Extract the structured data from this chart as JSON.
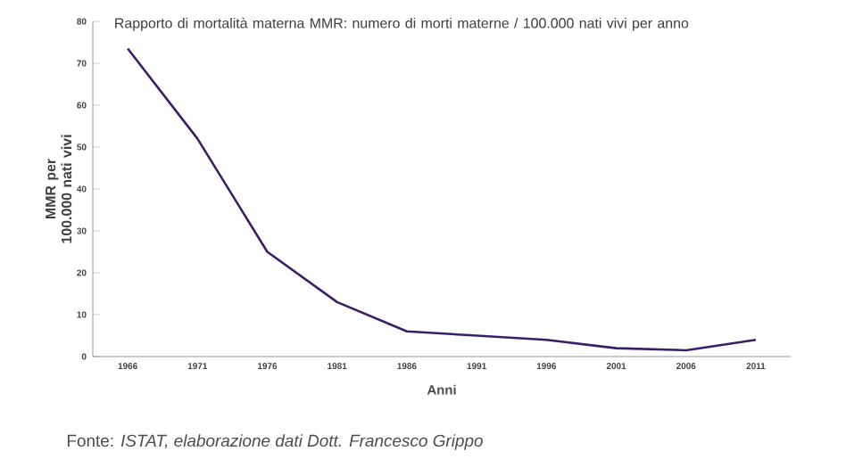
{
  "chart_data": {
    "type": "line",
    "title": "Rapporto di mortalità materna MMR: numero di morti materne / 100.000 nati vivi  per anno",
    "xlabel": "Anni",
    "ylabel": "MMR per 100.000 nati vivi",
    "categories": [
      "1966",
      "1971",
      "1976",
      "1981",
      "1986",
      "1991",
      "1996",
      "2001",
      "2006",
      "2011"
    ],
    "series": [
      {
        "color": "#3b1f66",
        "values": [
          73.5,
          52,
          25,
          13,
          6,
          5,
          4,
          2,
          1.5,
          4
        ]
      }
    ],
    "ylim": [
      0,
      80
    ],
    "yticks": [
      0,
      10,
      20,
      30,
      40,
      50,
      60,
      70,
      80
    ],
    "marker": "none",
    "line_style": "solid",
    "annotations": [
      "Fonte: *ISTAT,  elaborazione dati Dott. Francesco Grippo*"
    ]
  }
}
